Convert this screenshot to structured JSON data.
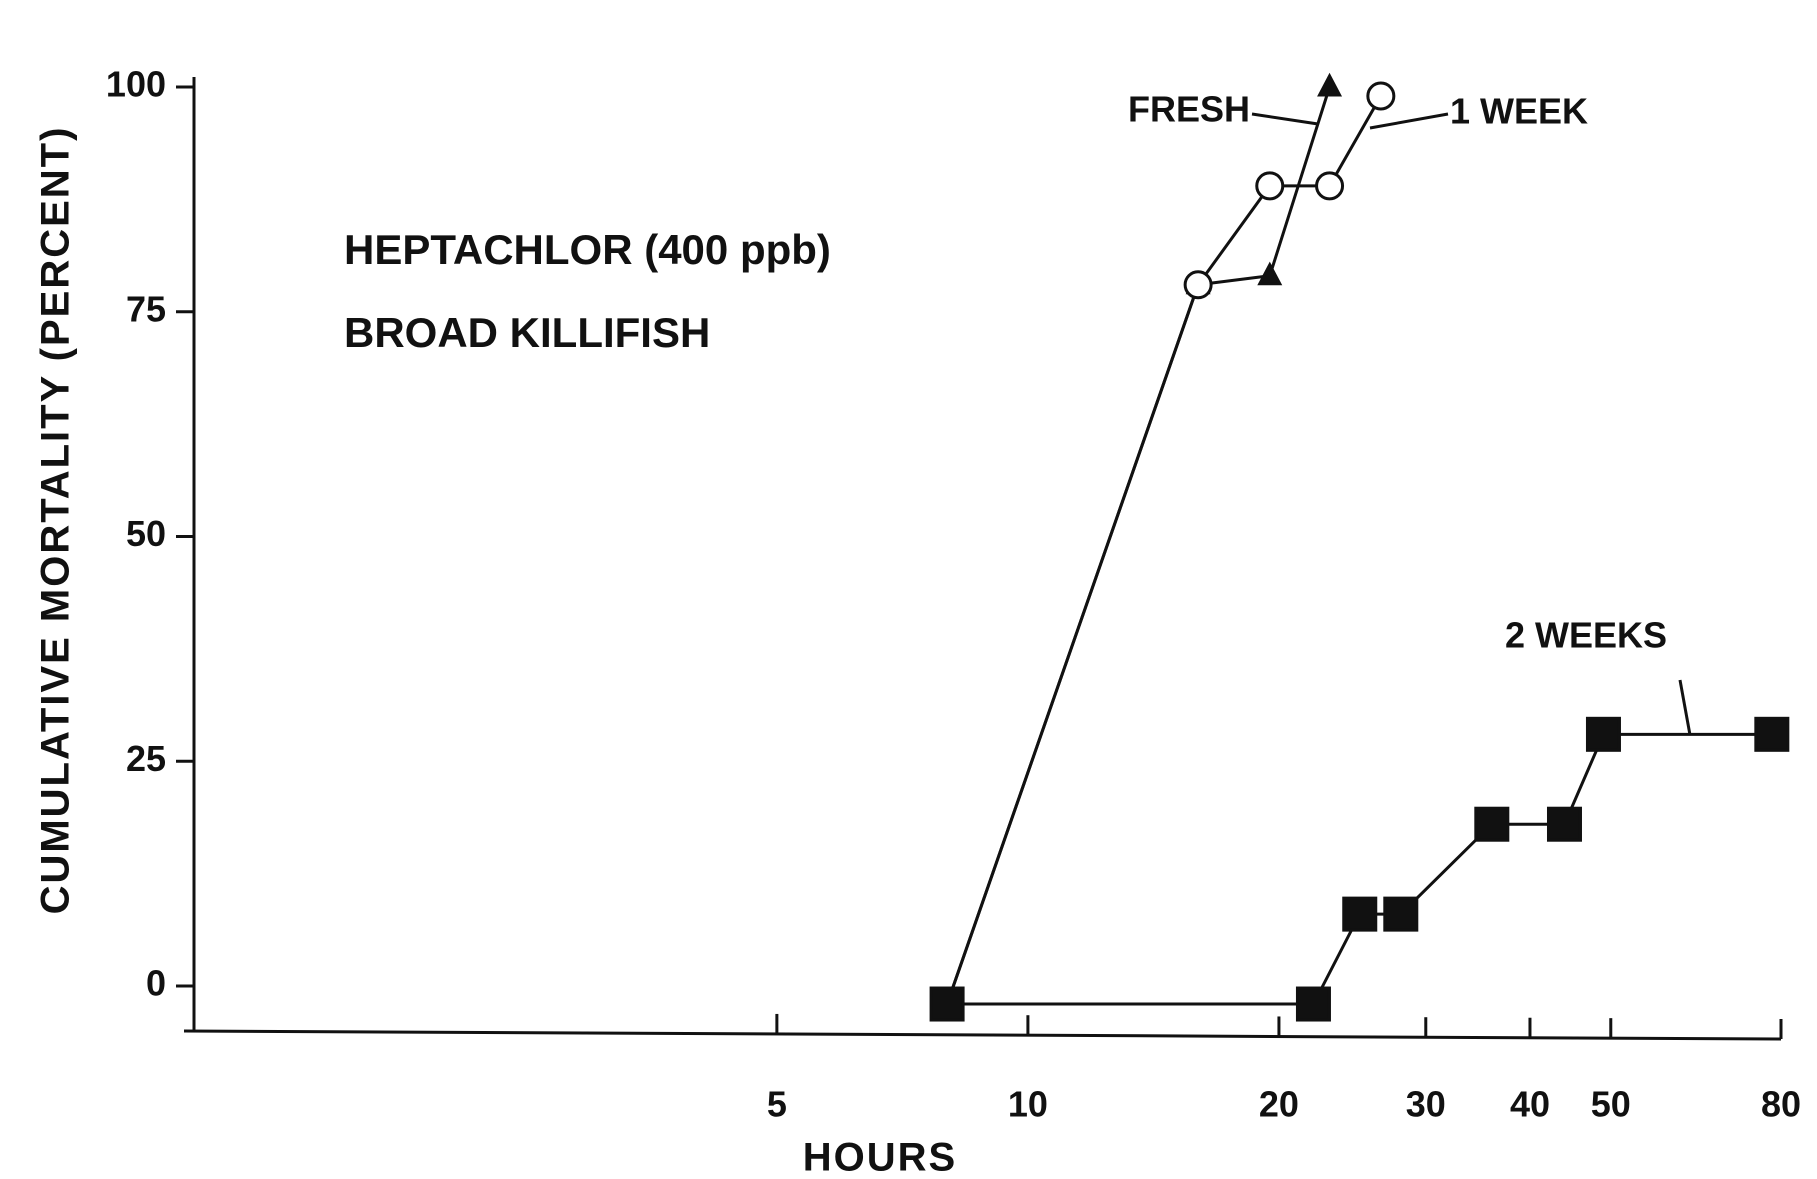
{
  "chart_data": {
    "type": "line",
    "xlabel": "HOURS",
    "ylabel": "CUMULATIVE MORTALITY (PERCENT)",
    "annotations": [
      "HEPTACHLOR (400 ppb)",
      "BROAD KILLIFISH"
    ],
    "xscale": "log",
    "xlim": [
      1,
      80
    ],
    "xticks": [
      5,
      10,
      20,
      30,
      40,
      50,
      80
    ],
    "ylim": [
      -5,
      100
    ],
    "yticks": [
      0,
      25,
      50,
      75,
      100
    ],
    "series": [
      {
        "name": "FRESH",
        "color": "#111111",
        "marker": "triangle",
        "x": [
          8,
          16,
          19.5,
          23
        ],
        "values": [
          -2,
          78,
          79,
          100
        ]
      },
      {
        "name": "1 WEEK",
        "color": "#111111",
        "marker": "circle",
        "x": [
          8,
          16,
          19.5,
          23,
          26.5
        ],
        "values": [
          -2,
          78,
          89,
          89,
          99
        ]
      },
      {
        "name": "2 WEEKS",
        "color": "#111111",
        "marker": "square",
        "x": [
          8,
          22,
          25,
          28,
          36,
          44,
          49,
          78
        ],
        "values": [
          -2,
          -2,
          8,
          8,
          18,
          18,
          28,
          28
        ]
      }
    ]
  }
}
